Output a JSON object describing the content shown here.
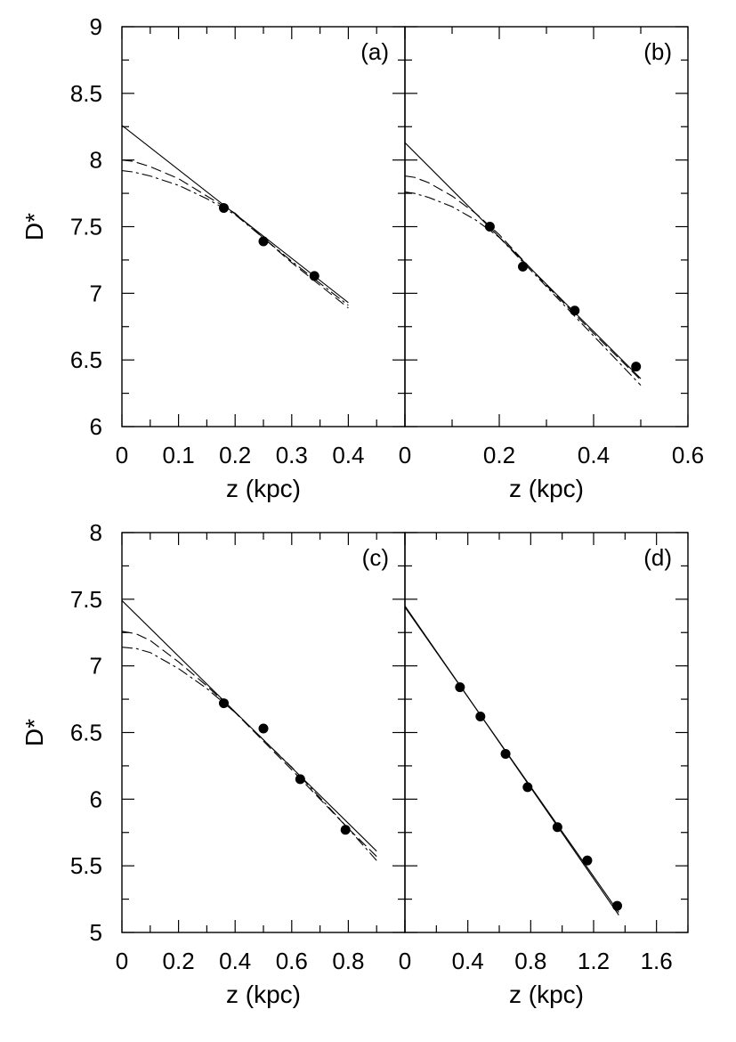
{
  "chart_data": [
    {
      "type": "line",
      "panel_label": "(a)",
      "xlabel": "z (kpc)",
      "ylabel": "D*",
      "xlim": [
        0,
        0.5
      ],
      "ylim": [
        6,
        9
      ],
      "xticks": [
        "0",
        "0.1",
        "0.2",
        "0.3",
        "0.4"
      ],
      "yticks": [
        "6",
        "6.5",
        "7",
        "7.5",
        "8",
        "8.5",
        "9"
      ],
      "points": [
        {
          "x": 0.18,
          "y": 7.64
        },
        {
          "x": 0.25,
          "y": 7.39
        },
        {
          "x": 0.34,
          "y": 7.13
        }
      ],
      "series": [
        {
          "style": "solid",
          "x": [
            0,
            0.4
          ],
          "y": [
            8.26,
            6.93
          ]
        },
        {
          "style": "dashed",
          "x": [
            0,
            0.02,
            0.05,
            0.1,
            0.15,
            0.2,
            0.3,
            0.4
          ],
          "y": [
            8.0,
            7.99,
            7.95,
            7.86,
            7.73,
            7.6,
            7.23,
            6.89
          ]
        },
        {
          "style": "dash-dot",
          "x": [
            0,
            0.02,
            0.05,
            0.1,
            0.15,
            0.2,
            0.3,
            0.4
          ],
          "y": [
            7.92,
            7.91,
            7.88,
            7.81,
            7.71,
            7.59,
            7.24,
            6.91
          ]
        }
      ]
    },
    {
      "type": "line",
      "panel_label": "(b)",
      "xlabel": "z (kpc)",
      "ylabel": "",
      "xlim": [
        0,
        0.6
      ],
      "ylim": [
        6,
        9
      ],
      "xticks": [
        "0",
        "0.2",
        "0.4",
        "0.6"
      ],
      "yticks": [],
      "points": [
        {
          "x": 0.18,
          "y": 7.5
        },
        {
          "x": 0.25,
          "y": 7.2
        },
        {
          "x": 0.36,
          "y": 6.87
        },
        {
          "x": 0.49,
          "y": 6.45
        }
      ],
      "series": [
        {
          "style": "solid",
          "x": [
            0,
            0.5
          ],
          "y": [
            8.13,
            6.36
          ]
        },
        {
          "style": "dashed",
          "x": [
            0,
            0.02,
            0.05,
            0.1,
            0.15,
            0.2,
            0.3,
            0.4,
            0.5
          ],
          "y": [
            7.88,
            7.87,
            7.83,
            7.73,
            7.6,
            7.44,
            7.06,
            6.7,
            6.35
          ]
        },
        {
          "style": "dash-dot",
          "x": [
            0,
            0.02,
            0.05,
            0.1,
            0.15,
            0.2,
            0.3,
            0.4,
            0.5
          ],
          "y": [
            7.76,
            7.75,
            7.72,
            7.65,
            7.55,
            7.42,
            7.05,
            6.68,
            6.31
          ]
        }
      ]
    },
    {
      "type": "line",
      "panel_label": "(c)",
      "xlabel": "z (kpc)",
      "ylabel": "D*",
      "xlim": [
        0,
        1.0
      ],
      "ylim": [
        5,
        8
      ],
      "xticks": [
        "0",
        "0.2",
        "0.4",
        "0.6",
        "0.8"
      ],
      "yticks": [
        "5",
        "5.5",
        "6",
        "6.5",
        "7",
        "7.5",
        "8"
      ],
      "points": [
        {
          "x": 0.36,
          "y": 6.72
        },
        {
          "x": 0.5,
          "y": 6.53
        },
        {
          "x": 0.63,
          "y": 6.15
        },
        {
          "x": 0.79,
          "y": 5.77
        }
      ],
      "series": [
        {
          "style": "solid",
          "x": [
            0,
            0.9
          ],
          "y": [
            7.49,
            5.61
          ]
        },
        {
          "style": "dashed",
          "x": [
            0,
            0.05,
            0.1,
            0.2,
            0.3,
            0.4,
            0.6,
            0.8,
            0.9
          ],
          "y": [
            7.26,
            7.24,
            7.19,
            7.03,
            6.85,
            6.65,
            6.22,
            5.78,
            5.57
          ]
        },
        {
          "style": "dash-dot",
          "x": [
            0,
            0.05,
            0.1,
            0.2,
            0.3,
            0.4,
            0.6,
            0.8,
            0.9
          ],
          "y": [
            7.14,
            7.13,
            7.1,
            6.98,
            6.83,
            6.65,
            6.24,
            5.78,
            5.54
          ]
        }
      ]
    },
    {
      "type": "line",
      "panel_label": "(d)",
      "xlabel": "z (kpc)",
      "ylabel": "",
      "xlim": [
        0,
        1.8
      ],
      "ylim": [
        5,
        8
      ],
      "xticks": [
        "0",
        "0.4",
        "0.8",
        "1.2",
        "1.6"
      ],
      "yticks": [],
      "points": [
        {
          "x": 0.35,
          "y": 6.84
        },
        {
          "x": 0.48,
          "y": 6.62
        },
        {
          "x": 0.64,
          "y": 6.34
        },
        {
          "x": 0.78,
          "y": 6.09
        },
        {
          "x": 0.97,
          "y": 5.79
        },
        {
          "x": 1.16,
          "y": 5.54
        },
        {
          "x": 1.35,
          "y": 5.2
        }
      ],
      "series": [
        {
          "style": "solid",
          "x": [
            0,
            1.36
          ],
          "y": [
            7.45,
            5.13
          ]
        },
        {
          "style": "solid",
          "x": [
            0,
            1.36
          ],
          "y": [
            7.44,
            5.15
          ]
        }
      ]
    }
  ]
}
